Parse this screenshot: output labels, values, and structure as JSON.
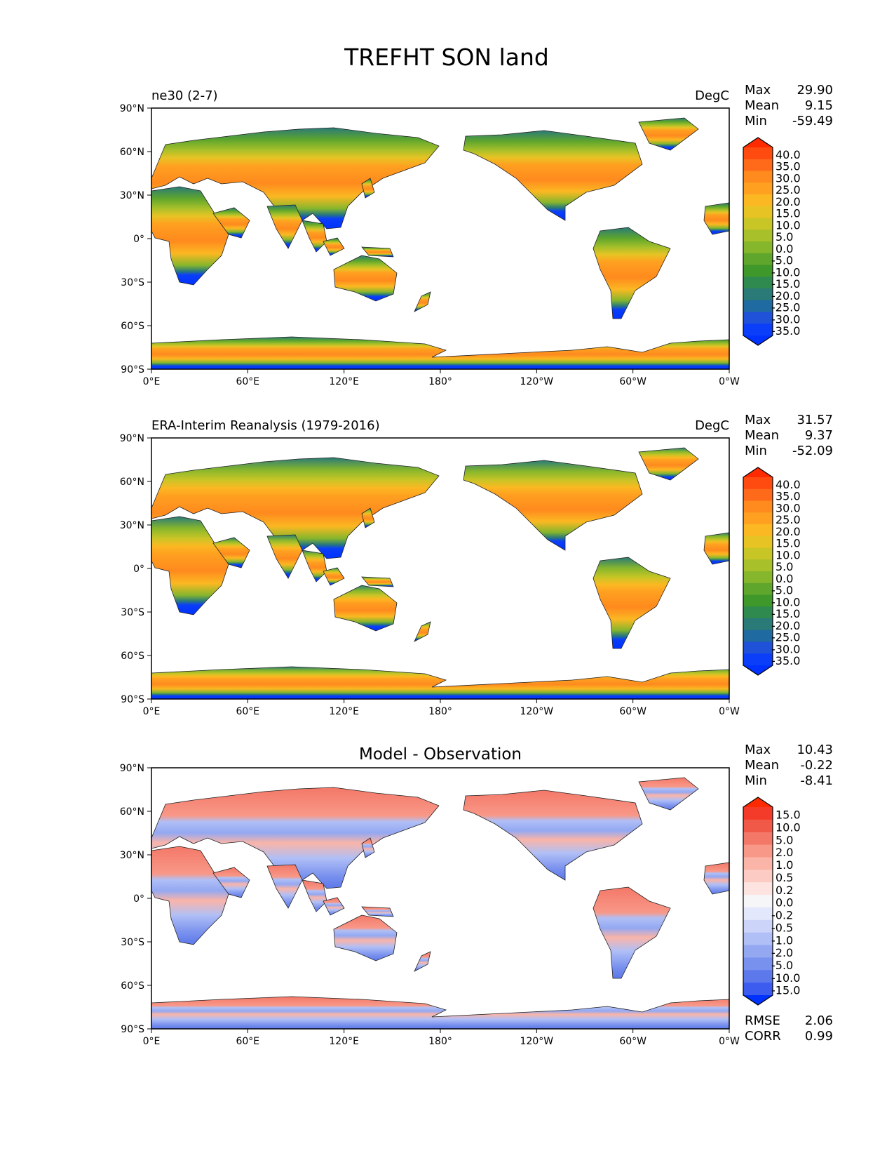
{
  "title": "TREFHT SON land",
  "lat_ticks": [
    "90°N",
    "60°N",
    "30°N",
    "0°",
    "30°S",
    "60°S",
    "90°S"
  ],
  "lon_ticks": [
    "0°E",
    "60°E",
    "120°E",
    "180°",
    "120°W",
    "60°W",
    "0°W"
  ],
  "panels": [
    {
      "left_title": "ne30 (2-7)",
      "center_title": "",
      "units": "DegC",
      "stats": {
        "max_label": "Max",
        "max": "29.90",
        "mean_label": "Mean",
        "mean": "9.15",
        "min_label": "Min",
        "min": "-59.49"
      },
      "colorbar": {
        "labels": [
          "40.0",
          "35.0",
          "30.0",
          "25.0",
          "20.0",
          "15.0",
          "10.0",
          "5.0",
          "0.0",
          "-5.0",
          "-10.0",
          "-15.0",
          "-20.0",
          "-25.0",
          "-30.0",
          "-35.0"
        ],
        "colors": [
          "#ff2a00",
          "#ff4a10",
          "#ff6a1a",
          "#ff8a1e",
          "#ffa020",
          "#fbb822",
          "#e8c324",
          "#c8c526",
          "#a8c02a",
          "#86b62c",
          "#5fa62c",
          "#3f982a",
          "#2f8a50",
          "#2a7a78",
          "#1f6aa0",
          "#1f52d8",
          "#0a3ef8",
          "#0032ff"
        ]
      }
    },
    {
      "left_title": "ERA-Interim Reanalysis (1979-2016)",
      "center_title": "",
      "units": "DegC",
      "stats": {
        "max_label": "Max",
        "max": "31.57",
        "mean_label": "Mean",
        "mean": "9.37",
        "min_label": "Min",
        "min": "-52.09"
      },
      "colorbar": {
        "labels": [
          "40.0",
          "35.0",
          "30.0",
          "25.0",
          "20.0",
          "15.0",
          "10.0",
          "5.0",
          "0.0",
          "-5.0",
          "-10.0",
          "-15.0",
          "-20.0",
          "-25.0",
          "-30.0",
          "-35.0"
        ],
        "colors": [
          "#ff2a00",
          "#ff4a10",
          "#ff6a1a",
          "#ff8a1e",
          "#ffa020",
          "#fbb822",
          "#e8c324",
          "#c8c526",
          "#a8c02a",
          "#86b62c",
          "#5fa62c",
          "#3f982a",
          "#2f8a50",
          "#2a7a78",
          "#1f6aa0",
          "#1f52d8",
          "#0a3ef8",
          "#0032ff"
        ]
      }
    },
    {
      "left_title": "",
      "center_title": "Model - Observation",
      "units": "",
      "stats": {
        "max_label": "Max",
        "max": "10.43",
        "mean_label": "Mean",
        "mean": "-0.22",
        "min_label": "Min",
        "min": "-8.41"
      },
      "colorbar": {
        "labels": [
          "15.0",
          "10.0",
          "5.0",
          "2.0",
          "1.0",
          "0.5",
          "0.2",
          "0.0",
          "-0.2",
          "-0.5",
          "-1.0",
          "-2.0",
          "-5.0",
          "-10.0",
          "-15.0"
        ],
        "colors": [
          "#ff2a00",
          "#f43a28",
          "#f05848",
          "#f47868",
          "#f89888",
          "#fab4a8",
          "#fcccc4",
          "#fde4e0",
          "#f6f6f8",
          "#e4e8fc",
          "#ccd4fa",
          "#b0bff6",
          "#94a8f2",
          "#7890ee",
          "#5c78ea",
          "#3c5cf0",
          "#0032ff"
        ]
      },
      "extra_stats": {
        "rmse_label": "RMSE",
        "rmse": "2.06",
        "corr_label": "CORR",
        "corr": "0.99"
      }
    }
  ]
}
